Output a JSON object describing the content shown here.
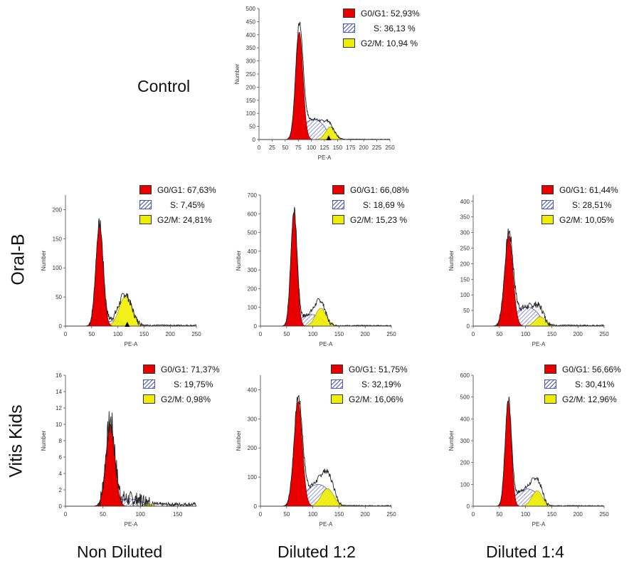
{
  "row_labels": {
    "control": "Control",
    "oral_b": "Oral-B",
    "vitis_kids": "Vitis Kids"
  },
  "column_labels": {
    "non_diluted": "Non Diluted",
    "diluted_1_2": "Diluted 1:2",
    "diluted_1_4": "Diluted 1:4"
  },
  "axis_labels": {
    "x": "PE-A",
    "y": "Number"
  },
  "colors": {
    "g0g1": "#e80000",
    "s": "#4a56c8",
    "g2m": "#f0ee00",
    "outline": "#222222"
  },
  "legend_labels": {
    "control": [
      "G0/G1: 52,93%",
      "S: 36,13 %",
      "G2/M: 10,94 %"
    ],
    "oralb_nd": [
      "G0/G1: 67,63%",
      "S: 7,45%",
      "G2/M: 24,81%"
    ],
    "oralb_12": [
      "G0/G1: 66,08%",
      "S: 18,69 %",
      "G2/M: 15,23 %"
    ],
    "oralb_14": [
      "G0/G1: 61,44%",
      "S: 28,51%",
      "G2/M: 10,05%"
    ],
    "vitis_nd": [
      "G0/G1: 71,37%",
      "S: 19,75%",
      "G2/M: 0,98%"
    ],
    "vitis_12": [
      "G0/G1: 51,75%",
      "S: 32,19%",
      "G2/M: 16,06%"
    ],
    "vitis_14": [
      "G0/G1: 56,66%",
      "S: 30,41%",
      "G2/M: 12,96%"
    ]
  },
  "chart_data": [
    {
      "id": "control",
      "type": "area",
      "title": "Control",
      "xlabel": "PE-A",
      "ylabel": "Number",
      "xlim": [
        0,
        250
      ],
      "ylim": [
        0,
        500
      ],
      "xticks": [
        "0",
        "25",
        "50",
        "75",
        "100",
        "125",
        "150",
        "175",
        "200",
        "225",
        "250"
      ],
      "yticks": [
        "0",
        "50",
        "100",
        "150",
        "200",
        "250",
        "300",
        "350",
        "400",
        "450",
        "500"
      ],
      "series": [
        {
          "name": "G0/G1",
          "percent": 52.93,
          "mean": 77,
          "sd": 7,
          "peak": 410
        },
        {
          "name": "S",
          "percent": 36.13,
          "start": 65,
          "end": 140,
          "peak": 88
        },
        {
          "name": "G2/M",
          "percent": 10.94,
          "mean": 136,
          "sd": 9,
          "peak": 48
        }
      ],
      "marker_x": 133,
      "noise": 14
    },
    {
      "id": "oralb_nd",
      "type": "area",
      "title": "Oral-B Non Diluted",
      "xlabel": "PE-A",
      "ylabel": "Number",
      "xlim": [
        0,
        250
      ],
      "ylim": [
        0,
        225
      ],
      "xticks": [
        "0",
        "50",
        "100",
        "150",
        "200",
        "250"
      ],
      "yticks": [
        "0",
        "50",
        "100",
        "150",
        "200"
      ],
      "series": [
        {
          "name": "G0/G1",
          "percent": 67.63,
          "mean": 65,
          "sd": 7,
          "peak": 175
        },
        {
          "name": "S",
          "percent": 7.45,
          "start": 62,
          "end": 120,
          "peak": 10
        },
        {
          "name": "G2/M",
          "percent": 24.81,
          "mean": 115,
          "sd": 12,
          "peak": 52
        }
      ],
      "marker_x": 118,
      "noise": 16
    },
    {
      "id": "oralb_12",
      "type": "area",
      "title": "Oral-B Diluted 1:2",
      "xlabel": "PE-A",
      "ylabel": "Number",
      "xlim": [
        0,
        250
      ],
      "ylim": [
        0,
        700
      ],
      "xticks": [
        "0",
        "50",
        "100",
        "150",
        "200",
        "250"
      ],
      "yticks": [
        "0",
        "100",
        "200",
        "300",
        "400",
        "500",
        "600",
        "700"
      ],
      "series": [
        {
          "name": "G0/G1",
          "percent": 66.08,
          "mean": 64,
          "sd": 6,
          "peak": 610
        },
        {
          "name": "S",
          "percent": 18.69,
          "start": 60,
          "end": 130,
          "peak": 70
        },
        {
          "name": "G2/M",
          "percent": 15.23,
          "mean": 115,
          "sd": 10,
          "peak": 95
        }
      ],
      "marker_x": null,
      "noise": 35
    },
    {
      "id": "oralb_14",
      "type": "area",
      "title": "Oral-B Diluted 1:4",
      "xlabel": "PE-A",
      "ylabel": "Number",
      "xlim": [
        0,
        250
      ],
      "ylim": [
        0,
        420
      ],
      "xticks": [
        "0",
        "50",
        "100",
        "150",
        "200",
        "250"
      ],
      "yticks": [
        "0",
        "50",
        "100",
        "150",
        "200",
        "250",
        "300",
        "350",
        "400"
      ],
      "series": [
        {
          "name": "G0/G1",
          "percent": 61.44,
          "mean": 68,
          "sd": 8,
          "peak": 290
        },
        {
          "name": "S",
          "percent": 28.51,
          "start": 62,
          "end": 140,
          "peak": 70
        },
        {
          "name": "G2/M",
          "percent": 10.05,
          "mean": 128,
          "sd": 10,
          "peak": 30
        }
      ],
      "marker_x": null,
      "noise": 28
    },
    {
      "id": "vitis_nd",
      "type": "area",
      "title": "Vitis Kids Non Diluted",
      "xlabel": "PE-A",
      "ylabel": "Number",
      "xlim": [
        0,
        175
      ],
      "ylim": [
        0,
        16
      ],
      "xticks": [
        "0",
        "50",
        "100",
        "150"
      ],
      "yticks": [
        "0",
        "2",
        "4",
        "6",
        "8",
        "10",
        "12",
        "14",
        "16"
      ],
      "series": [
        {
          "name": "G0/G1",
          "percent": 71.37,
          "mean": 60,
          "sd": 6,
          "peak": 10
        },
        {
          "name": "S",
          "percent": 19.75,
          "start": 50,
          "end": 115,
          "peak": 1
        },
        {
          "name": "G2/M",
          "percent": 0.98,
          "mean": 110,
          "sd": 5,
          "peak": 0.3
        }
      ],
      "marker_x": null,
      "noise": 3
    },
    {
      "id": "vitis_12",
      "type": "area",
      "title": "Vitis Kids Diluted 1:2",
      "xlabel": "PE-A",
      "ylabel": "Number",
      "xlim": [
        0,
        250
      ],
      "ylim": [
        0,
        450
      ],
      "xticks": [
        "0",
        "50",
        "100",
        "150",
        "200",
        "250"
      ],
      "yticks": [
        "0",
        "100",
        "200",
        "300",
        "400"
      ],
      "series": [
        {
          "name": "G0/G1",
          "percent": 51.75,
          "mean": 72,
          "sd": 8,
          "peak": 360
        },
        {
          "name": "S",
          "percent": 32.19,
          "start": 65,
          "end": 150,
          "peak": 85
        },
        {
          "name": "G2/M",
          "percent": 16.06,
          "mean": 128,
          "sd": 12,
          "peak": 60
        }
      ],
      "marker_x": null,
      "noise": 22
    },
    {
      "id": "vitis_14",
      "type": "area",
      "title": "Vitis Kids Diluted 1:4",
      "xlabel": "PE-A",
      "ylabel": "Number",
      "xlim": [
        0,
        250
      ],
      "ylim": [
        0,
        600
      ],
      "xticks": [
        "0",
        "50",
        "100",
        "150",
        "200",
        "250"
      ],
      "yticks": [
        "0",
        "100",
        "200",
        "300",
        "400",
        "500",
        "600"
      ],
      "series": [
        {
          "name": "G0/G1",
          "percent": 56.66,
          "mean": 67,
          "sd": 6,
          "peak": 480
        },
        {
          "name": "S",
          "percent": 30.41,
          "start": 62,
          "end": 140,
          "peak": 90
        },
        {
          "name": "G2/M",
          "percent": 12.96,
          "mean": 122,
          "sd": 10,
          "peak": 70
        }
      ],
      "marker_x": null,
      "noise": 26
    }
  ]
}
